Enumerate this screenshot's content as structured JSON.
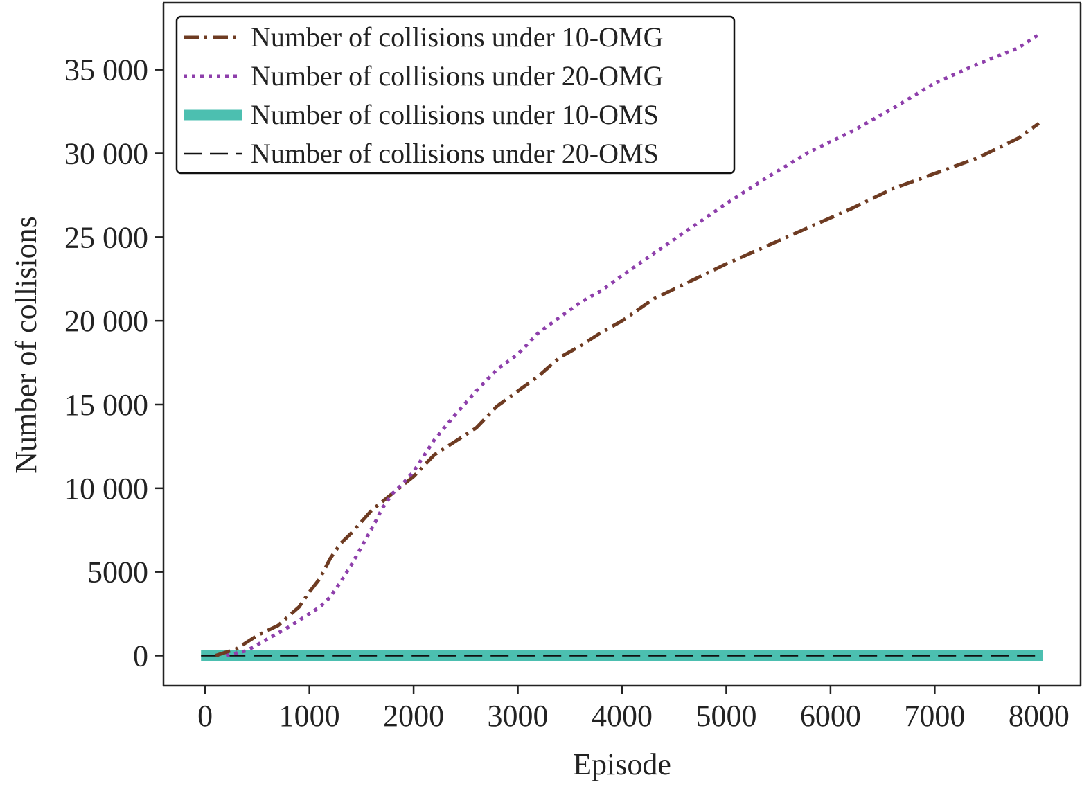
{
  "chart_data": {
    "type": "line",
    "xlabel": "Episode",
    "ylabel": "Number of collisions",
    "xlim": [
      -400,
      8400
    ],
    "ylim": [
      -1800,
      39000
    ],
    "x_ticks": [
      0,
      1000,
      2000,
      3000,
      4000,
      5000,
      6000,
      7000,
      8000
    ],
    "x_tick_labels": [
      "0",
      "1000",
      "2000",
      "3000",
      "4000",
      "5000",
      "6000",
      "7000",
      "8000"
    ],
    "y_ticks": [
      0,
      5000,
      10000,
      15000,
      20000,
      25000,
      30000,
      35000
    ],
    "y_tick_labels": [
      "0",
      "5000",
      "10 000",
      "15 000",
      "20 000",
      "25 000",
      "30 000",
      "35 000"
    ],
    "grid": false,
    "legend_position": "top-left",
    "series": [
      {
        "name": "Number of collisions under 10-OMG",
        "color": "#6e3b22",
        "style": "dashdot",
        "x": [
          100,
          300,
          500,
          700,
          900,
          1000,
          1100,
          1200,
          1300,
          1400,
          1500,
          1600,
          1700,
          1800,
          1900,
          2000,
          2200,
          2400,
          2600,
          2800,
          3000,
          3200,
          3400,
          3600,
          3800,
          4000,
          4300,
          4600,
          5000,
          5400,
          5800,
          6200,
          6600,
          7000,
          7400,
          7800,
          8000
        ],
        "values": [
          0,
          400,
          1200,
          1800,
          2900,
          3800,
          4600,
          5800,
          6700,
          7300,
          8000,
          8700,
          9200,
          9700,
          10200,
          10700,
          12000,
          12800,
          13600,
          14900,
          15800,
          16700,
          17800,
          18500,
          19300,
          20000,
          21300,
          22200,
          23400,
          24500,
          25600,
          26700,
          27900,
          28800,
          29700,
          30900,
          31800
        ]
      },
      {
        "name": "Number of collisions under 20-OMG",
        "color": "#8e3fab",
        "style": "dotted",
        "x": [
          200,
          400,
          600,
          800,
          1000,
          1100,
          1200,
          1300,
          1400,
          1500,
          1600,
          1700,
          1800,
          1900,
          2000,
          2200,
          2400,
          2600,
          2800,
          3000,
          3200,
          3400,
          3600,
          3800,
          4000,
          4300,
          4600,
          5000,
          5400,
          5800,
          6200,
          6600,
          7000,
          7400,
          7800,
          8000
        ],
        "values": [
          0,
          300,
          1000,
          1700,
          2500,
          2900,
          3500,
          4400,
          5400,
          6500,
          7600,
          8800,
          9700,
          10300,
          11000,
          12900,
          14400,
          15800,
          17100,
          18000,
          19300,
          20200,
          21100,
          21800,
          22700,
          24000,
          25300,
          27000,
          28600,
          30100,
          31300,
          32700,
          34200,
          35300,
          36300,
          37100
        ]
      },
      {
        "name": "Number of collisions under 10-OMS",
        "color": "#4cbfb0",
        "style": "solid-thick",
        "x": [
          -40,
          8040
        ],
        "values": [
          0,
          0
        ]
      },
      {
        "name": "Number of collisions under 20-OMS",
        "color": "#111111",
        "style": "dashed",
        "x": [
          -40,
          8040
        ],
        "values": [
          0,
          0
        ]
      }
    ]
  }
}
